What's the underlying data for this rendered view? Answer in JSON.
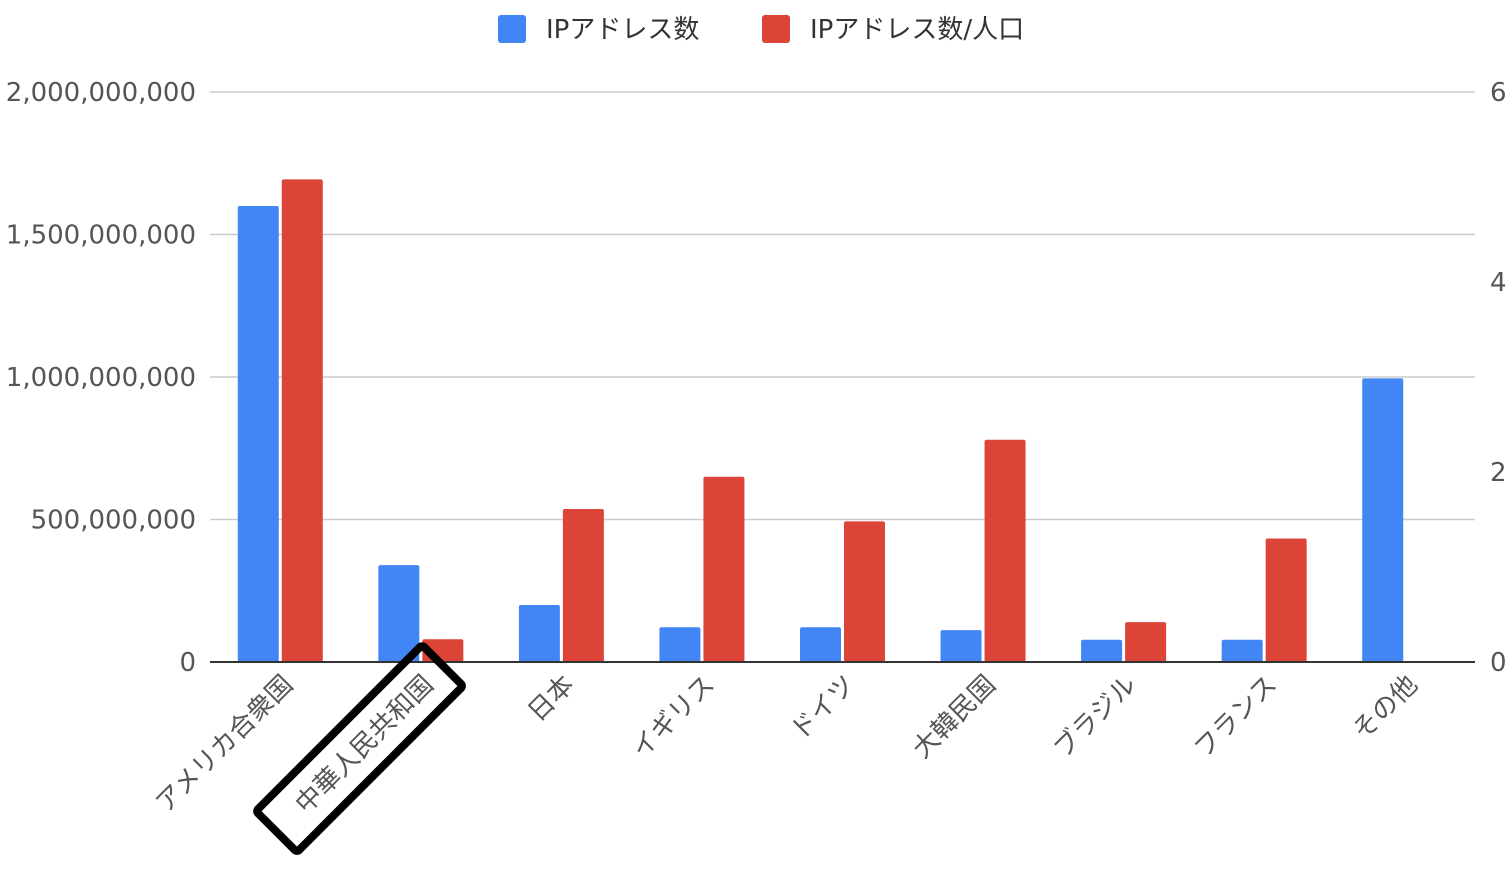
{
  "chart_data": {
    "type": "bar",
    "categories": [
      "アメリカ合衆国",
      "中華人民共和国",
      "日本",
      "イギリス",
      "ドイツ",
      "大韓民国",
      "ブラジル",
      "フランス",
      "その他"
    ],
    "series": [
      {
        "name": "IPアドレス数",
        "axis": "left",
        "color": "#4285f4",
        "values": [
          1600000000,
          340000000,
          200000000,
          122000000,
          122000000,
          112000000,
          78000000,
          78000000,
          995000000
        ]
      },
      {
        "name": "IPアドレス数/人口",
        "axis": "right",
        "color": "#db4437",
        "values": [
          5.08,
          0.24,
          1.61,
          1.95,
          1.48,
          2.34,
          0.42,
          1.3,
          null
        ]
      }
    ],
    "left_axis": {
      "ticks": [
        "0",
        "500,000,000",
        "1,000,000,000",
        "1,500,000,000",
        "2,000,000,000"
      ],
      "ylim": [
        0,
        2000000000
      ]
    },
    "right_axis": {
      "ticks": [
        "0",
        "2",
        "4",
        "6"
      ],
      "ylim": [
        0,
        6
      ]
    },
    "legend_position": "top-center",
    "grid": true,
    "highlighted_category": "中華人民共和国"
  }
}
